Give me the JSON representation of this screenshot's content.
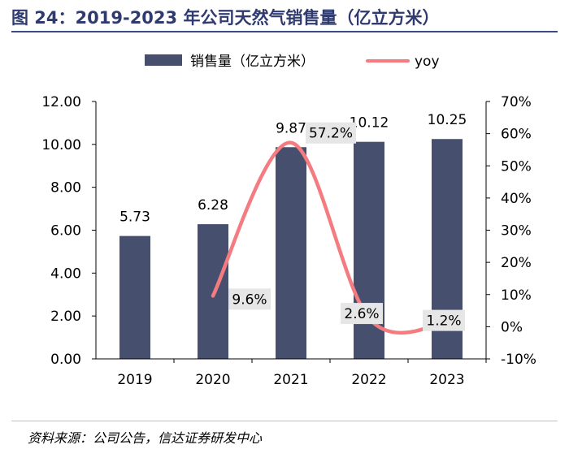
{
  "header": {
    "title": "图 24：2019-2023 年公司天然气销售量（亿立方米）"
  },
  "footer": {
    "source": "资料来源：公司公告，信达证券研发中心"
  },
  "colors": {
    "bar": "#46506e",
    "line": "#f47c80",
    "label_bg": "#e6e6e6",
    "title": "#2f3b6e"
  },
  "chart_data": {
    "type": "bar",
    "categories": [
      "2019",
      "2020",
      "2021",
      "2022",
      "2023"
    ],
    "series": [
      {
        "name": "销售量（亿立方米）",
        "type": "bar",
        "axis": "left",
        "values": [
          5.73,
          6.28,
          9.87,
          10.12,
          10.25
        ],
        "labels": [
          "5.73",
          "6.28",
          "9.87",
          "10.12",
          "10.25"
        ]
      },
      {
        "name": "yoy",
        "type": "line",
        "axis": "right",
        "values": [
          null,
          9.6,
          57.2,
          2.6,
          1.2
        ],
        "labels": [
          "",
          "9.6%",
          "57.2%",
          "2.6%",
          "1.2%"
        ]
      }
    ],
    "y_left": {
      "min": 0,
      "max": 12,
      "step": 2,
      "tick_labels": [
        "0.00",
        "2.00",
        "4.00",
        "6.00",
        "8.00",
        "10.00",
        "12.00"
      ]
    },
    "y_right": {
      "min": -10,
      "max": 70,
      "step": 10,
      "tick_labels": [
        "-10%",
        "0%",
        "10%",
        "20%",
        "30%",
        "40%",
        "50%",
        "60%",
        "70%"
      ]
    },
    "legend": {
      "position": "top",
      "entries": [
        "销售量（亿立方米）",
        "yoy"
      ]
    },
    "grid": false
  }
}
